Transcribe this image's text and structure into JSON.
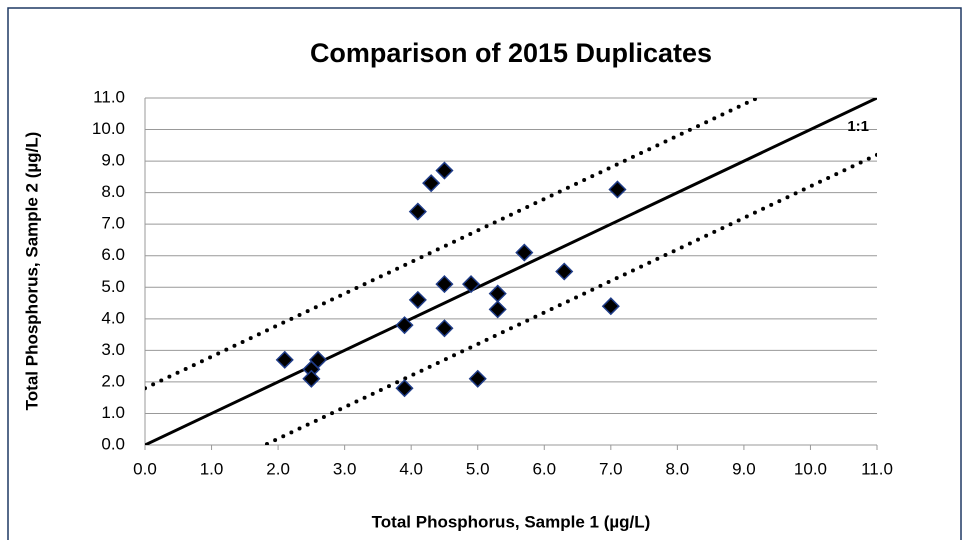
{
  "chart_data": {
    "type": "scatter",
    "title": "Comparison of 2015 Duplicates",
    "x_label": "Total Phosphorus, Sample 1 (µg/L)",
    "y_label": "Total Phosphorus, Sample 2 (µg/L)",
    "series": [
      {
        "color": "#000000",
        "x": [
          2.1,
          2.5,
          2.5,
          2.6,
          3.9,
          3.9,
          4.1,
          4.1,
          4.3,
          4.5,
          4.5,
          4.5,
          4.9,
          5.0,
          5.3,
          5.3,
          5.7,
          6.3,
          7.0,
          7.1
        ],
        "values": [
          2.7,
          2.4,
          2.1,
          2.7,
          3.8,
          1.8,
          7.4,
          4.6,
          8.3,
          8.7,
          5.1,
          3.7,
          5.1,
          2.1,
          4.8,
          4.3,
          6.1,
          5.5,
          4.4,
          8.1
        ]
      }
    ],
    "lines": [
      {
        "slope": 1,
        "intercept": 0,
        "style": "solid",
        "label": "1:1"
      },
      {
        "slope": 1,
        "intercept": 1.8,
        "style": "dotted"
      },
      {
        "slope": 1,
        "intercept": -1.8,
        "style": "dotted"
      }
    ],
    "xlim": [
      0,
      11
    ],
    "ylim": [
      0,
      11
    ],
    "xticks": [
      {
        "value": 0,
        "label": "0.0"
      },
      {
        "value": 1,
        "label": "1.0"
      },
      {
        "value": 2,
        "label": "2.0"
      },
      {
        "value": 3,
        "label": "3.0"
      },
      {
        "value": 4,
        "label": "4.0"
      },
      {
        "value": 5,
        "label": "5.0"
      },
      {
        "value": 6,
        "label": "6.0"
      },
      {
        "value": 7,
        "label": "7.0"
      },
      {
        "value": 8,
        "label": "8.0"
      },
      {
        "value": 9,
        "label": "9.0"
      },
      {
        "value": 10,
        "label": "10.0"
      },
      {
        "value": 11,
        "label": "11.0"
      }
    ],
    "yticks": [
      {
        "value": 0,
        "label": "0.0"
      },
      {
        "value": 1,
        "label": "1.0"
      },
      {
        "value": 2,
        "label": "2.0"
      },
      {
        "value": 3,
        "label": "3.0"
      },
      {
        "value": 4,
        "label": "4.0"
      },
      {
        "value": 5,
        "label": "5.0"
      },
      {
        "value": 6,
        "label": "6.0"
      },
      {
        "value": 7,
        "label": "7.0"
      },
      {
        "value": 8,
        "label": "8.0"
      },
      {
        "value": 9,
        "label": "9.0"
      },
      {
        "value": 10,
        "label": "10.0"
      },
      {
        "value": 11,
        "label": "11.0"
      }
    ],
    "grid": true
  }
}
